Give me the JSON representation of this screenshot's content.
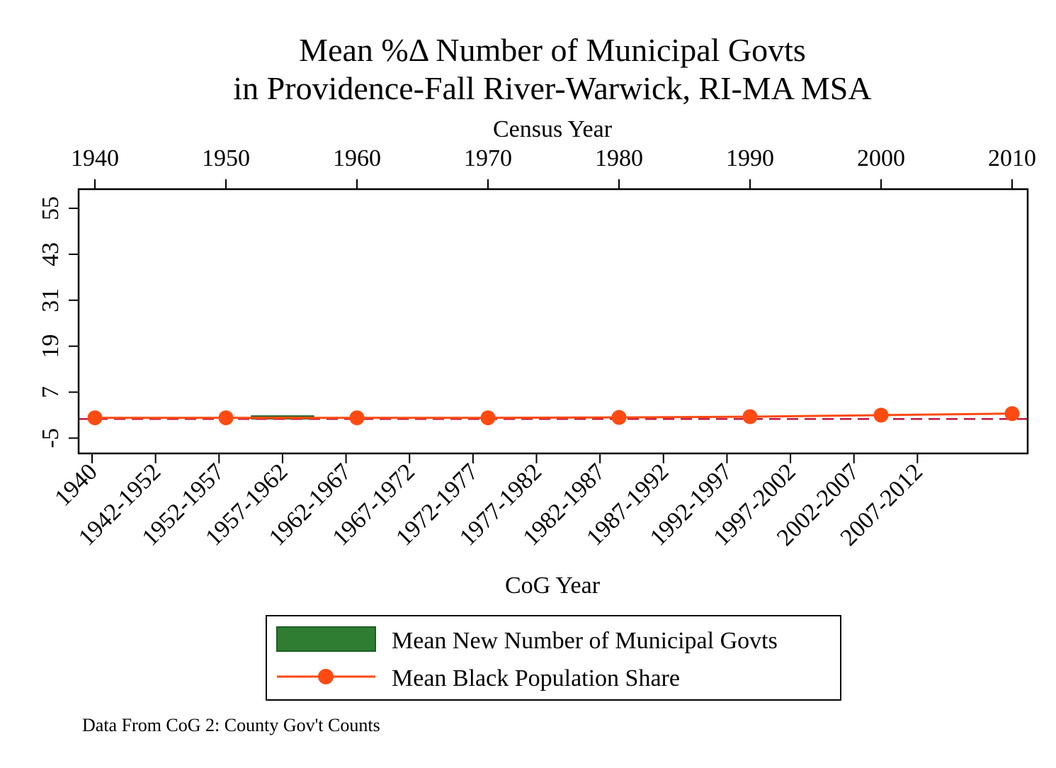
{
  "chart_data": {
    "type": "bar",
    "title_line1": "Mean %Δ Number of Municipal Govts",
    "title_line2": "in Providence-Fall River-Warwick, RI-MA MSA",
    "top_axis": {
      "title": "Census Year",
      "ticks": [
        "1940",
        "1950",
        "1960",
        "1970",
        "1980",
        "1990",
        "2000",
        "2010"
      ]
    },
    "bottom_axis": {
      "title": "CoG Year",
      "ticks": [
        "1940",
        "1942-1952",
        "1952-1957",
        "1957-1962",
        "1962-1967",
        "1967-1972",
        "1972-1977",
        "1977-1982",
        "1982-1987",
        "1987-1992",
        "1992-1997",
        "1997-2002",
        "2002-2007",
        "2007-2012"
      ]
    },
    "y_axis": {
      "ticks": [
        55,
        43,
        31,
        19,
        7,
        -5
      ],
      "ylim": [
        -9,
        60
      ]
    },
    "reference_line": {
      "y": 0,
      "color": "#c0143c",
      "style": "dashed"
    },
    "series": [
      {
        "name": "Mean New Number of Municipal Govts",
        "kind": "bar",
        "color": "#2e7d32",
        "points": [
          {
            "category": "1957-1962",
            "value": 0.8
          }
        ]
      },
      {
        "name": "Mean Black Population Share",
        "kind": "line",
        "color": "#ff4a12",
        "x": [
          1940,
          1950,
          1960,
          1970,
          1980,
          1990,
          2000,
          2010
        ],
        "values": [
          0.3,
          0.3,
          0.3,
          0.3,
          0.4,
          0.6,
          1.0,
          1.4
        ]
      }
    ],
    "legend_position": "bottom",
    "grid": false
  },
  "note": "Data From CoG 2: County Gov't Counts"
}
